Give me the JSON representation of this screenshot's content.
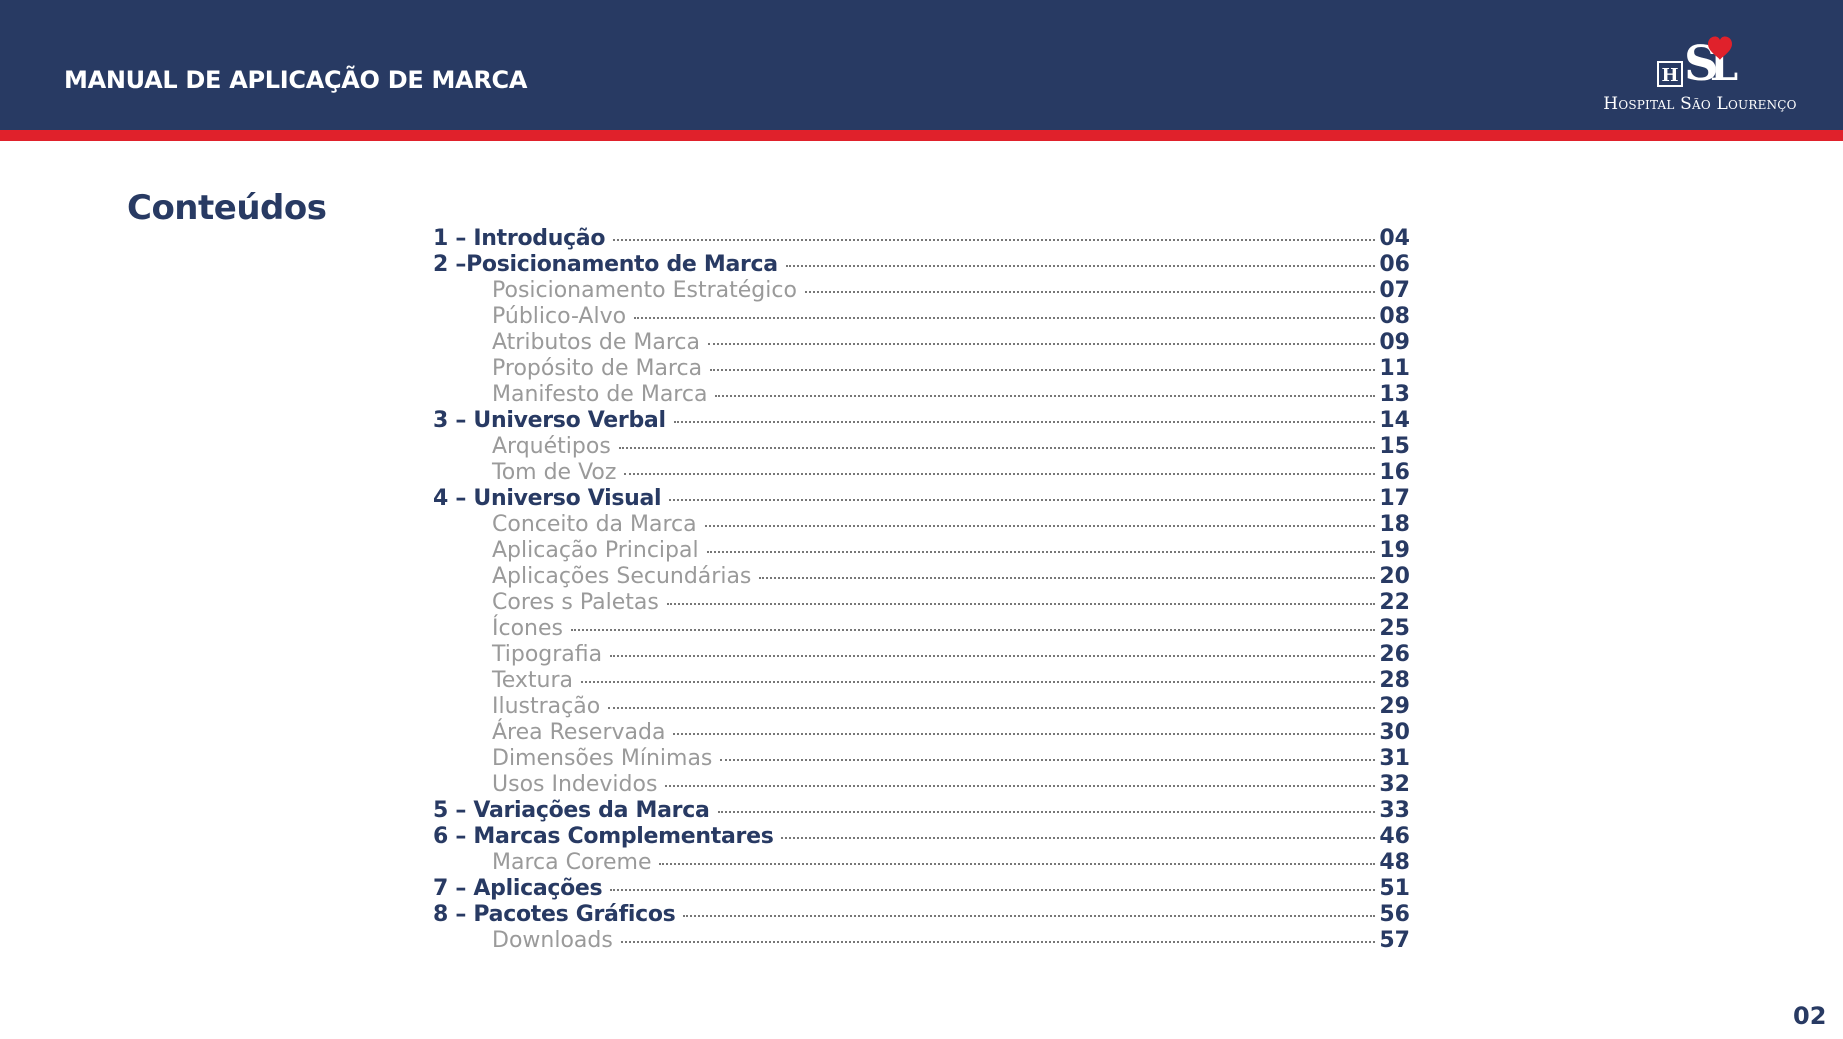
{
  "header": {
    "title": "MANUAL DE APLICAÇÃO DE MARCA",
    "logo_text": "Hospital São Lourenço",
    "logo_monogram": "HSL",
    "colors": {
      "navy": "#283a63",
      "red": "#e0212b",
      "white": "#ffffff"
    }
  },
  "contents": {
    "title": "Conteúdos",
    "items": [
      {
        "level": "main",
        "label": "1 – Introdução",
        "page": "04"
      },
      {
        "level": "main",
        "label": "2 –Posicionamento de Marca",
        "page": "06"
      },
      {
        "level": "sub",
        "label": "Posicionamento Estratégico",
        "page": "07"
      },
      {
        "level": "sub",
        "label": "Público-Alvo",
        "page": "08"
      },
      {
        "level": "sub",
        "label": "Atributos de Marca",
        "page": "09"
      },
      {
        "level": "sub",
        "label": "Propósito de Marca",
        "page": "11"
      },
      {
        "level": "sub",
        "label": "Manifesto de Marca",
        "page": "13"
      },
      {
        "level": "main",
        "label": "3 – Universo Verbal",
        "page": "14"
      },
      {
        "level": "sub",
        "label": "Arquétipos",
        "page": "15"
      },
      {
        "level": "sub",
        "label": "Tom de Voz",
        "page": "16"
      },
      {
        "level": "main",
        "label": "4 – Universo Visual",
        "page": "17"
      },
      {
        "level": "sub",
        "label": "Conceito da Marca",
        "page": "18"
      },
      {
        "level": "sub",
        "label": "Aplicação Principal",
        "page": "19"
      },
      {
        "level": "sub",
        "label": "Aplicações Secundárias",
        "page": "20"
      },
      {
        "level": "sub",
        "label": "Cores s Paletas",
        "page": "22"
      },
      {
        "level": "sub",
        "label": "Ícones",
        "page": "25"
      },
      {
        "level": "sub",
        "label": "Tipografia",
        "page": "26"
      },
      {
        "level": "sub",
        "label": "Textura",
        "page": "28"
      },
      {
        "level": "sub",
        "label": "Ilustração",
        "page": "29"
      },
      {
        "level": "sub",
        "label": "Área Reservada",
        "page": "30"
      },
      {
        "level": "sub",
        "label": "Dimensões Mínimas",
        "page": "31"
      },
      {
        "level": "sub",
        "label": "Usos Indevidos",
        "page": "32"
      },
      {
        "level": "main",
        "label": "5 – Variações da  Marca",
        "page": "33"
      },
      {
        "level": "main",
        "label": "6 – Marcas Complementares",
        "page": "46"
      },
      {
        "level": "sub",
        "label": "Marca Coreme",
        "page": "48"
      },
      {
        "level": "main",
        "label": "7 – Aplicações",
        "page": "51"
      },
      {
        "level": "main",
        "label": "8 – Pacotes Gráficos",
        "page": "56"
      },
      {
        "level": "sub",
        "label": "Downloads",
        "page": "57"
      }
    ]
  },
  "footer": {
    "page_number": "02"
  }
}
